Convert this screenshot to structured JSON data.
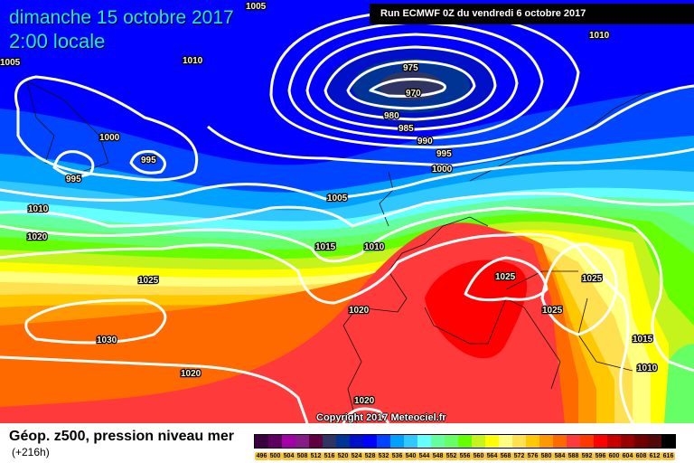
{
  "header": {
    "date": "dimanche 15 octobre 2017",
    "time": "2:00 locale",
    "run": "Run ECMWF 0Z du vendredi 6 octobre 2017"
  },
  "copyright": "Copyright 2017 Meteociel.fr",
  "footer": {
    "title": "Géop. z500, pression niveau mer",
    "lead": "(+216h)"
  },
  "isobar_labels": [
    "1005",
    "1005",
    "1010",
    "1010",
    "975",
    "970",
    "980",
    "985",
    "990",
    "995",
    "1000",
    "995",
    "995",
    "1000",
    "1005",
    "1010",
    "1020",
    "1015",
    "1010",
    "1025",
    "1025",
    "1025",
    "1020",
    "1025",
    "1030",
    "1015",
    "1020",
    "1010",
    "1020"
  ],
  "legend": {
    "values": [
      "496",
      "500",
      "504",
      "508",
      "512",
      "516",
      "520",
      "524",
      "528",
      "532",
      "536",
      "540",
      "544",
      "548",
      "552",
      "556",
      "560",
      "564",
      "568",
      "572",
      "576",
      "580",
      "584",
      "588",
      "592",
      "596",
      "600",
      "604",
      "608",
      "612",
      "616"
    ],
    "colors": [
      "#3a0040",
      "#5e005e",
      "#a400a8",
      "#861c88",
      "#600040",
      "#303462",
      "#003494",
      "#0010c8",
      "#0000ff",
      "#0044ff",
      "#00a0ff",
      "#30c8ff",
      "#66ffff",
      "#66ffa0",
      "#66ff66",
      "#66ff00",
      "#c4f41c",
      "#ffff00",
      "#ffff80",
      "#ffe050",
      "#ffc800",
      "#ff9800",
      "#ff6a00",
      "#ff3a3a",
      "#ff3800",
      "#ff0000",
      "#c80000",
      "#980000",
      "#700000",
      "#500808",
      "#000000"
    ]
  }
}
